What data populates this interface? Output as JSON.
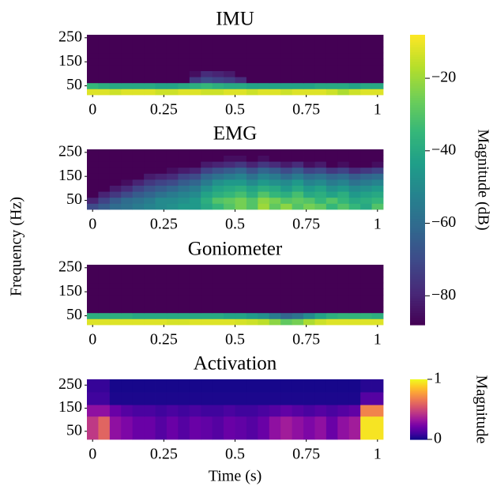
{
  "ylabel": "Frequency (Hz)",
  "chart_data": [
    {
      "type": "heatmap",
      "title": "IMU",
      "cmap": "viridis",
      "clim": [
        -88,
        -8
      ],
      "xlim": [
        -0.02,
        1.02
      ],
      "ylim": [
        12.5,
        262.5
      ],
      "xticks": [
        0,
        0.25,
        0.5,
        0.75,
        1
      ],
      "yticks": [
        50,
        150,
        250
      ],
      "xbins": [
        -0.02,
        0.02,
        0.06,
        0.1,
        0.14,
        0.18,
        0.22,
        0.26,
        0.3,
        0.34,
        0.38,
        0.42,
        0.46,
        0.5,
        0.54,
        0.58,
        0.62,
        0.66,
        0.7,
        0.74,
        0.78,
        0.82,
        0.86,
        0.9,
        0.94,
        0.98,
        1.02
      ],
      "ybins": [
        12.5,
        37.5,
        62.5,
        87.5,
        112.5,
        137.5,
        162.5,
        187.5,
        212.5,
        237.5,
        262.5
      ],
      "colorbar": {
        "label": "Magnitude (dB)",
        "ticks": [
          {
            "value": -20,
            "label": "−20"
          },
          {
            "value": -40,
            "label": "−40"
          },
          {
            "value": -60,
            "label": "−60"
          },
          {
            "value": -80,
            "label": "−80"
          }
        ]
      },
      "z": [
        [
          -12,
          -12,
          -14,
          -12,
          -12,
          -12,
          -14,
          -14,
          -12,
          -12,
          -14,
          -14,
          -12,
          -12,
          -14,
          -12,
          -12,
          -14,
          -12,
          -12,
          -12,
          -14,
          -18,
          -14,
          -12,
          -12
        ],
        [
          -35,
          -38,
          -40,
          -40,
          -40,
          -40,
          -42,
          -42,
          -40,
          -38,
          -35,
          -38,
          -40,
          -40,
          -42,
          -42,
          -42,
          -42,
          -42,
          -42,
          -40,
          -40,
          -40,
          -42,
          -40,
          -40
        ],
        [
          -88,
          -88,
          -88,
          -88,
          -88,
          -88,
          -88,
          -88,
          -88,
          -75,
          -70,
          -72,
          -74,
          -78,
          -88,
          -88,
          -88,
          -88,
          -88,
          -88,
          -88,
          -88,
          -88,
          -88,
          -88,
          -88
        ],
        [
          -88,
          -88,
          -88,
          -88,
          -88,
          -88,
          -88,
          -88,
          -88,
          -85,
          -78,
          -80,
          -82,
          -88,
          -88,
          -88,
          -88,
          -88,
          -88,
          -88,
          -88,
          -88,
          -88,
          -88,
          -88,
          -88
        ],
        [
          -88,
          -88,
          -88,
          -88,
          -88,
          -88,
          -88,
          -88,
          -88,
          -88,
          -88,
          -88,
          -88,
          -88,
          -88,
          -88,
          -88,
          -88,
          -88,
          -88,
          -88,
          -88,
          -88,
          -88,
          -88,
          -88
        ],
        [
          -88,
          -88,
          -88,
          -88,
          -88,
          -88,
          -88,
          -88,
          -88,
          -88,
          -88,
          -88,
          -88,
          -88,
          -88,
          -88,
          -88,
          -88,
          -88,
          -88,
          -88,
          -88,
          -88,
          -88,
          -88,
          -88
        ],
        [
          -88,
          -88,
          -88,
          -88,
          -88,
          -88,
          -88,
          -88,
          -88,
          -88,
          -88,
          -88,
          -88,
          -88,
          -88,
          -88,
          -88,
          -88,
          -88,
          -88,
          -88,
          -88,
          -88,
          -88,
          -88,
          -88
        ],
        [
          -88,
          -88,
          -88,
          -88,
          -88,
          -88,
          -88,
          -88,
          -88,
          -88,
          -88,
          -88,
          -88,
          -88,
          -88,
          -88,
          -88,
          -88,
          -88,
          -88,
          -88,
          -88,
          -88,
          -88,
          -88,
          -88
        ],
        [
          -88,
          -88,
          -88,
          -88,
          -88,
          -88,
          -88,
          -88,
          -88,
          -88,
          -88,
          -88,
          -88,
          -88,
          -88,
          -88,
          -88,
          -88,
          -88,
          -88,
          -88,
          -88,
          -88,
          -88,
          -88,
          -88
        ],
        [
          -88,
          -88,
          -88,
          -88,
          -88,
          -88,
          -88,
          -88,
          -88,
          -88,
          -88,
          -88,
          -88,
          -88,
          -88,
          -88,
          -88,
          -88,
          -88,
          -88,
          -88,
          -88,
          -88,
          -88,
          -88,
          -88
        ]
      ]
    },
    {
      "type": "heatmap",
      "title": "EMG",
      "cmap": "viridis",
      "clim": [
        -88,
        -8
      ],
      "xlim": [
        -0.02,
        1.02
      ],
      "ylim": [
        12.5,
        262.5
      ],
      "xticks": [
        0,
        0.25,
        0.5,
        0.75,
        1
      ],
      "yticks": [
        50,
        150,
        250
      ],
      "xbins": [
        -0.02,
        0.02,
        0.06,
        0.1,
        0.14,
        0.18,
        0.22,
        0.26,
        0.3,
        0.34,
        0.38,
        0.42,
        0.46,
        0.5,
        0.54,
        0.58,
        0.62,
        0.66,
        0.7,
        0.74,
        0.78,
        0.82,
        0.86,
        0.9,
        0.94,
        0.98,
        1.02
      ],
      "ybins": [
        12.5,
        37.5,
        62.5,
        87.5,
        112.5,
        137.5,
        162.5,
        187.5,
        212.5,
        237.5,
        262.5
      ],
      "z": [
        [
          -70,
          -65,
          -60,
          -58,
          -55,
          -52,
          -50,
          -48,
          -45,
          -45,
          -40,
          -35,
          -30,
          -25,
          -30,
          -20,
          -28,
          -22,
          -30,
          -25,
          -28,
          -35,
          -30,
          -35,
          -40,
          -30
        ],
        [
          -80,
          -72,
          -65,
          -60,
          -58,
          -55,
          -50,
          -50,
          -48,
          -45,
          -38,
          -30,
          -28,
          -25,
          -30,
          -22,
          -25,
          -30,
          -28,
          -30,
          -35,
          -30,
          -35,
          -40,
          -38,
          -35
        ],
        [
          -88,
          -80,
          -75,
          -70,
          -65,
          -62,
          -58,
          -55,
          -52,
          -50,
          -42,
          -38,
          -35,
          -32,
          -38,
          -30,
          -35,
          -38,
          -32,
          -40,
          -38,
          -42,
          -38,
          -45,
          -42,
          -40
        ],
        [
          -88,
          -88,
          -82,
          -78,
          -72,
          -68,
          -65,
          -62,
          -58,
          -55,
          -48,
          -42,
          -40,
          -38,
          -42,
          -38,
          -40,
          -45,
          -40,
          -45,
          -42,
          -48,
          -45,
          -50,
          -48,
          -45
        ],
        [
          -88,
          -88,
          -88,
          -85,
          -80,
          -75,
          -72,
          -70,
          -65,
          -62,
          -55,
          -48,
          -45,
          -45,
          -50,
          -45,
          -48,
          -50,
          -45,
          -52,
          -50,
          -55,
          -52,
          -58,
          -55,
          -52
        ],
        [
          -88,
          -88,
          -88,
          -88,
          -88,
          -82,
          -80,
          -78,
          -72,
          -70,
          -62,
          -58,
          -55,
          -52,
          -58,
          -52,
          -55,
          -60,
          -55,
          -60,
          -58,
          -62,
          -60,
          -65,
          -62,
          -60
        ],
        [
          -88,
          -88,
          -88,
          -88,
          -88,
          -88,
          -88,
          -85,
          -82,
          -80,
          -72,
          -68,
          -65,
          -62,
          -68,
          -62,
          -65,
          -70,
          -65,
          -72,
          -70,
          -75,
          -72,
          -78,
          -75,
          -72
        ],
        [
          -88,
          -88,
          -88,
          -88,
          -88,
          -88,
          -88,
          -88,
          -88,
          -88,
          -82,
          -80,
          -78,
          -75,
          -80,
          -75,
          -78,
          -82,
          -78,
          -85,
          -82,
          -88,
          -85,
          -88,
          -88,
          -85
        ],
        [
          -88,
          -88,
          -88,
          -88,
          -88,
          -88,
          -88,
          -88,
          -88,
          -88,
          -88,
          -88,
          -85,
          -85,
          -88,
          -85,
          -88,
          -88,
          -88,
          -88,
          -88,
          -88,
          -88,
          -88,
          -88,
          -88
        ],
        [
          -88,
          -88,
          -88,
          -88,
          -88,
          -88,
          -88,
          -88,
          -88,
          -88,
          -88,
          -88,
          -88,
          -88,
          -88,
          -88,
          -88,
          -88,
          -88,
          -88,
          -88,
          -88,
          -88,
          -88,
          -88,
          -88
        ]
      ]
    },
    {
      "type": "heatmap",
      "title": "Goniometer",
      "cmap": "viridis",
      "clim": [
        -88,
        -8
      ],
      "xlim": [
        -0.02,
        1.02
      ],
      "ylim": [
        12.5,
        262.5
      ],
      "xticks": [
        0,
        0.25,
        0.5,
        0.75,
        1
      ],
      "yticks": [
        50,
        150,
        250
      ],
      "xbins": [
        -0.02,
        0.02,
        0.06,
        0.1,
        0.14,
        0.18,
        0.22,
        0.26,
        0.3,
        0.34,
        0.38,
        0.42,
        0.46,
        0.5,
        0.54,
        0.58,
        0.62,
        0.66,
        0.7,
        0.74,
        0.78,
        0.82,
        0.86,
        0.9,
        0.94,
        0.98,
        1.02
      ],
      "ybins": [
        12.5,
        37.5,
        62.5,
        87.5,
        112.5,
        137.5,
        162.5,
        187.5,
        212.5,
        237.5,
        262.5
      ],
      "z": [
        [
          -12,
          -12,
          -12,
          -12,
          -12,
          -12,
          -12,
          -13,
          -13,
          -12,
          -12,
          -12,
          -12,
          -13,
          -14,
          -16,
          -22,
          -28,
          -25,
          -18,
          -14,
          -12,
          -12,
          -12,
          -12,
          -12
        ],
        [
          -38,
          -38,
          -38,
          -38,
          -40,
          -40,
          -40,
          -40,
          -40,
          -40,
          -40,
          -40,
          -42,
          -42,
          -45,
          -48,
          -55,
          -62,
          -58,
          -50,
          -42,
          -38,
          -36,
          -36,
          -36,
          -38
        ],
        [
          -88,
          -88,
          -88,
          -88,
          -88,
          -88,
          -88,
          -88,
          -88,
          -88,
          -88,
          -88,
          -88,
          -88,
          -88,
          -88,
          -88,
          -88,
          -88,
          -88,
          -88,
          -88,
          -88,
          -88,
          -88,
          -88
        ],
        [
          -88,
          -88,
          -88,
          -88,
          -88,
          -88,
          -88,
          -88,
          -88,
          -88,
          -88,
          -88,
          -88,
          -88,
          -88,
          -88,
          -88,
          -88,
          -88,
          -88,
          -88,
          -88,
          -88,
          -88,
          -88,
          -88
        ],
        [
          -88,
          -88,
          -88,
          -88,
          -88,
          -88,
          -88,
          -88,
          -88,
          -88,
          -88,
          -88,
          -88,
          -88,
          -88,
          -88,
          -88,
          -88,
          -88,
          -88,
          -88,
          -88,
          -88,
          -88,
          -88,
          -88
        ],
        [
          -88,
          -88,
          -88,
          -88,
          -88,
          -88,
          -88,
          -88,
          -88,
          -88,
          -88,
          -88,
          -88,
          -88,
          -88,
          -88,
          -88,
          -88,
          -88,
          -88,
          -88,
          -88,
          -88,
          -88,
          -88,
          -88
        ],
        [
          -88,
          -88,
          -88,
          -88,
          -88,
          -88,
          -88,
          -88,
          -88,
          -88,
          -88,
          -88,
          -88,
          -88,
          -88,
          -88,
          -88,
          -88,
          -88,
          -88,
          -88,
          -88,
          -88,
          -88,
          -88,
          -88
        ],
        [
          -88,
          -88,
          -88,
          -88,
          -88,
          -88,
          -88,
          -88,
          -88,
          -88,
          -88,
          -88,
          -88,
          -88,
          -88,
          -88,
          -88,
          -88,
          -88,
          -88,
          -88,
          -88,
          -88,
          -88,
          -88,
          -88
        ],
        [
          -88,
          -88,
          -88,
          -88,
          -88,
          -88,
          -88,
          -88,
          -88,
          -88,
          -88,
          -88,
          -88,
          -88,
          -88,
          -88,
          -88,
          -88,
          -88,
          -88,
          -88,
          -88,
          -88,
          -88,
          -88,
          -88
        ],
        [
          -88,
          -88,
          -88,
          -88,
          -88,
          -88,
          -88,
          -88,
          -88,
          -88,
          -88,
          -88,
          -88,
          -88,
          -88,
          -88,
          -88,
          -88,
          -88,
          -88,
          -88,
          -88,
          -88,
          -88,
          -88,
          -88
        ]
      ]
    },
    {
      "type": "heatmap",
      "title": "Activation",
      "cmap": "plasma",
      "clim": [
        0,
        1
      ],
      "xlabel": "Time (s)",
      "xlim": [
        -0.02,
        1.02
      ],
      "ylim": [
        15,
        275
      ],
      "xticks": [
        0,
        0.25,
        0.5,
        0.75,
        1
      ],
      "yticks": [
        50,
        150,
        250
      ],
      "xbins": [
        -0.02,
        0.02,
        0.06,
        0.1,
        0.14,
        0.18,
        0.22,
        0.26,
        0.3,
        0.34,
        0.38,
        0.42,
        0.46,
        0.5,
        0.54,
        0.58,
        0.62,
        0.66,
        0.7,
        0.74,
        0.78,
        0.82,
        0.86,
        0.9,
        0.94,
        0.98,
        1.02
      ],
      "ybins": [
        15,
        115,
        165,
        220,
        275
      ],
      "colorbar": {
        "label": "Magnitude",
        "ticks": [
          0,
          1
        ]
      },
      "z": [
        [
          0.45,
          0.6,
          0.3,
          0.25,
          0.2,
          0.2,
          0.15,
          0.2,
          0.15,
          0.2,
          0.18,
          0.15,
          0.2,
          0.18,
          0.15,
          0.2,
          0.3,
          0.35,
          0.3,
          0.25,
          0.3,
          0.2,
          0.3,
          0.35,
          0.95,
          0.95
        ],
        [
          0.3,
          0.3,
          0.2,
          0.15,
          0.12,
          0.12,
          0.1,
          0.12,
          0.1,
          0.12,
          0.1,
          0.1,
          0.12,
          0.1,
          0.1,
          0.12,
          0.15,
          0.18,
          0.15,
          0.12,
          0.15,
          0.12,
          0.15,
          0.18,
          0.7,
          0.7
        ],
        [
          0.1,
          0.1,
          0.03,
          0.03,
          0.03,
          0.03,
          0.03,
          0.03,
          0.03,
          0.03,
          0.03,
          0.03,
          0.03,
          0.03,
          0.03,
          0.03,
          0.03,
          0.03,
          0.03,
          0.03,
          0.03,
          0.03,
          0.03,
          0.03,
          0.15,
          0.15
        ],
        [
          0.08,
          0.08,
          0.02,
          0.02,
          0.02,
          0.02,
          0.02,
          0.02,
          0.02,
          0.02,
          0.02,
          0.02,
          0.02,
          0.02,
          0.02,
          0.02,
          0.02,
          0.02,
          0.02,
          0.02,
          0.02,
          0.02,
          0.02,
          0.02,
          0.05,
          0.05
        ]
      ]
    }
  ]
}
